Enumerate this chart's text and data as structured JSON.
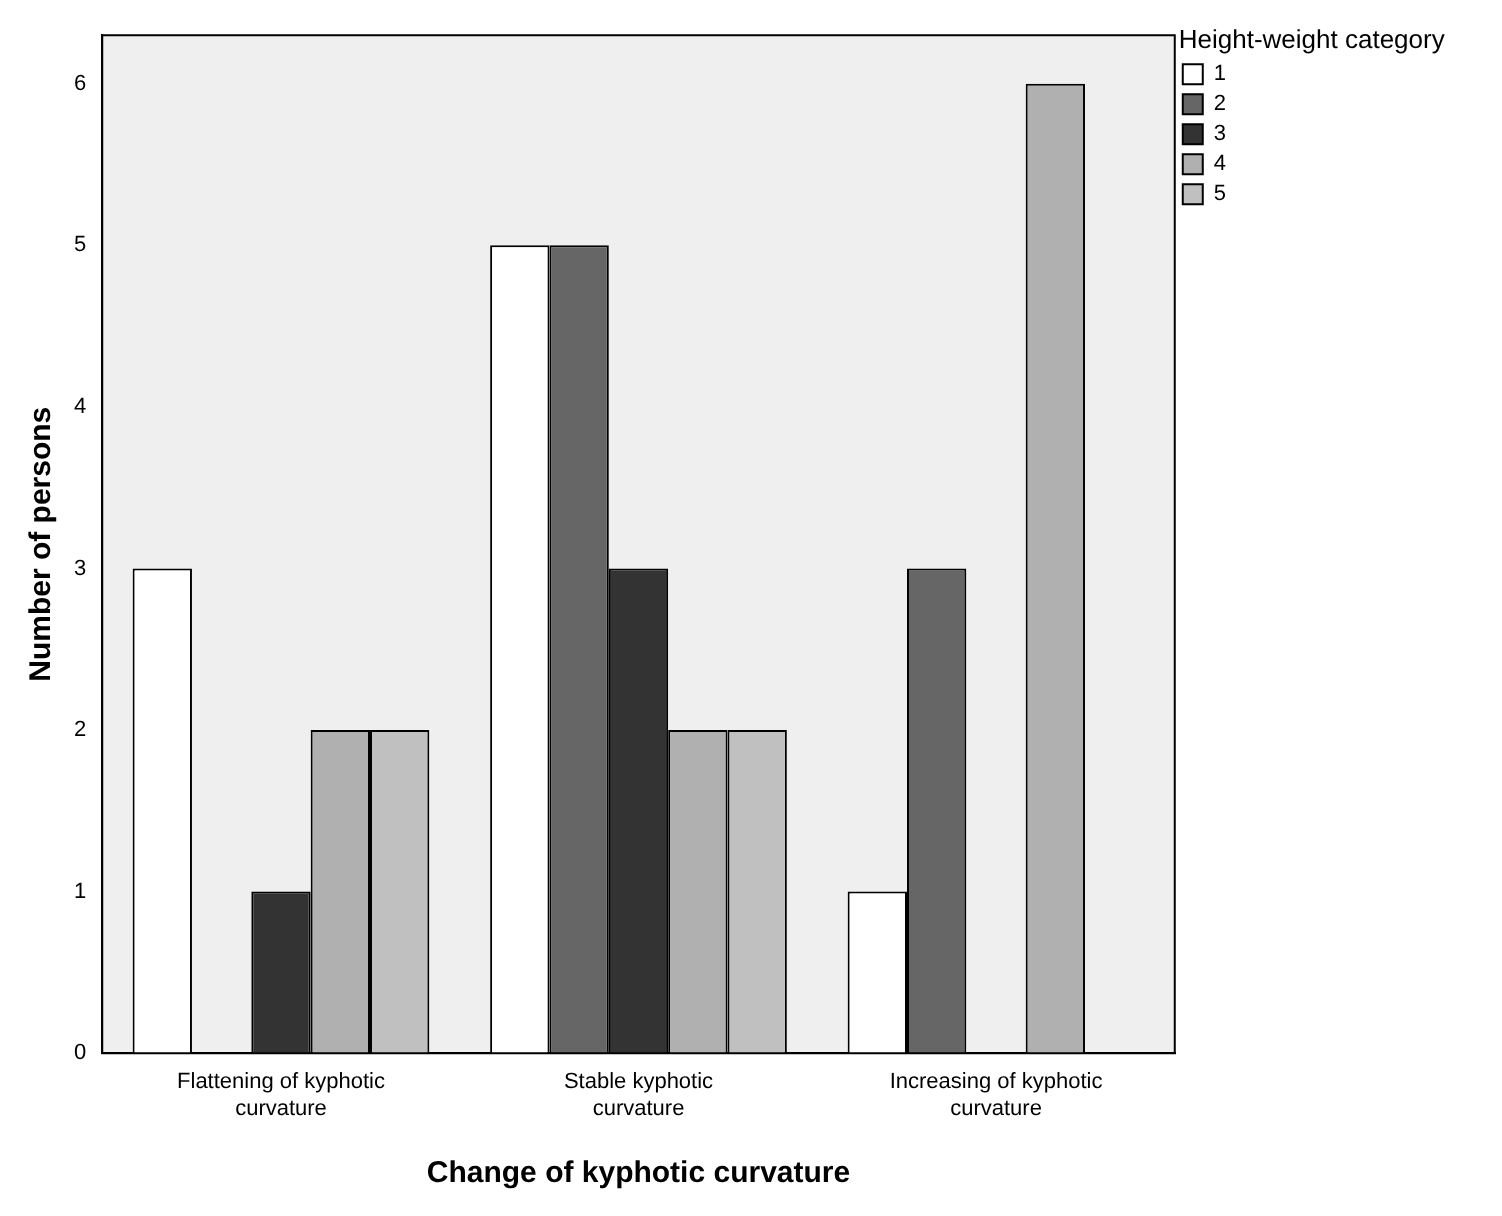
{
  "chart_data": {
    "type": "bar",
    "xlabel": "Change of kyphotic curvature",
    "ylabel": "Number of persons",
    "legend_title": "Height-weight category",
    "categories": [
      "Flattening of kyphotic curvature",
      "Stable kyphotic curvature",
      "Increasing of kyphotic curvature"
    ],
    "series": [
      {
        "name": "1",
        "color": "#ffffff",
        "values": [
          3,
          5,
          1
        ]
      },
      {
        "name": "2",
        "color": "#666666",
        "values": [
          0,
          5,
          3
        ]
      },
      {
        "name": "3",
        "color": "#333333",
        "values": [
          1,
          3,
          0
        ]
      },
      {
        "name": "4",
        "color": "#b0b0b0",
        "values": [
          2,
          2,
          6
        ]
      },
      {
        "name": "5",
        "color": "#c0c0c0",
        "values": [
          2,
          2,
          0
        ]
      }
    ],
    "ylim": [
      0,
      6.3
    ],
    "yticks": [
      0,
      1,
      2,
      3,
      4,
      5,
      6
    ],
    "grid": false,
    "legend": "top right"
  }
}
